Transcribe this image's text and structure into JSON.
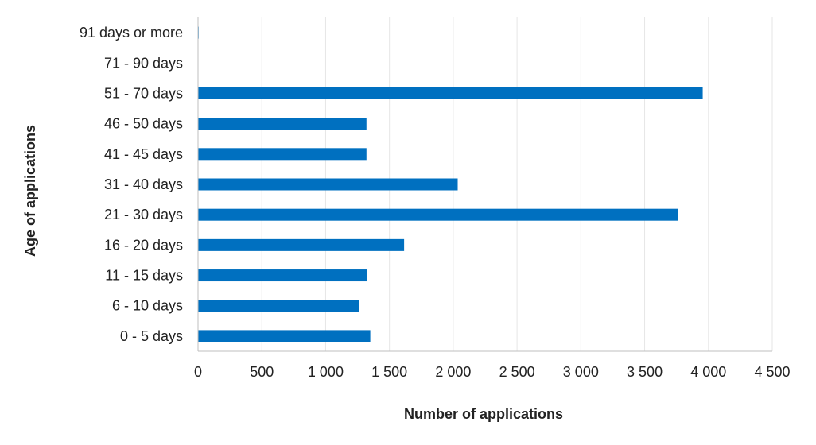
{
  "chart_data": {
    "type": "bar",
    "orientation": "horizontal",
    "categories": [
      "0 - 5 days",
      "6 - 10 days",
      "11 - 15 days",
      "16 - 20 days",
      "21 - 30 days",
      "31 - 40 days",
      "41 - 45 days",
      "46 - 50 days",
      "51 - 70 days",
      "71 - 90 days",
      "91 days or more"
    ],
    "values": [
      1350,
      1260,
      1325,
      1615,
      3760,
      2035,
      1320,
      1320,
      3955,
      0,
      5
    ],
    "xlabel": "Number of applications",
    "ylabel": "Age of applications",
    "xlim": [
      0,
      4500
    ],
    "xticks": [
      "0",
      "500",
      "1 000",
      "1 500",
      "2 000",
      "2 500",
      "3 000",
      "3 500",
      "4 000",
      "4 500"
    ],
    "grid": "vertical",
    "bar_color": "#0070c0",
    "legend": "none"
  }
}
